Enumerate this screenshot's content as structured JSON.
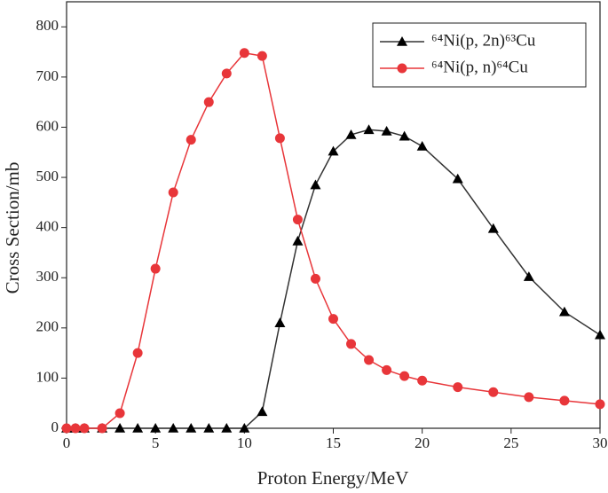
{
  "chart_data": {
    "type": "line",
    "x_label": "Proton Energy/MeV",
    "y_label": "Cross Section/mb",
    "x": [
      0,
      0.5,
      1,
      2,
      3,
      4,
      5,
      6,
      7,
      8,
      9,
      10,
      11,
      12,
      13,
      14,
      15,
      16,
      17,
      18,
      19,
      20,
      22,
      24,
      26,
      28,
      30
    ],
    "series": [
      {
        "name": "⁶⁴Ni(p, 2n)⁶³Cu",
        "color": "#333333",
        "marker": "triangle",
        "values": [
          0,
          0,
          0,
          0,
          0,
          0,
          0,
          0,
          0,
          0,
          0,
          0,
          33,
          210,
          373,
          485,
          552,
          585,
          595,
          592,
          582,
          562,
          497,
          398,
          302,
          232,
          186
        ]
      },
      {
        "name": "⁶⁴Ni(p, n)⁶⁴Cu",
        "color": "#e8363a",
        "marker": "circle",
        "values": [
          0,
          0,
          0,
          0,
          30,
          150,
          318,
          470,
          575,
          650,
          707,
          748,
          742,
          578,
          416,
          298,
          218,
          168,
          136,
          116,
          104,
          95,
          82,
          72,
          62,
          55,
          48
        ]
      }
    ],
    "xlim": [
      0,
      30
    ],
    "xticks": [
      0,
      5,
      10,
      15,
      20,
      25,
      30
    ],
    "ylim": [
      0,
      850
    ],
    "yticks": [
      0,
      100,
      200,
      300,
      400,
      500,
      600,
      700,
      800
    ],
    "legend": "top-right"
  }
}
